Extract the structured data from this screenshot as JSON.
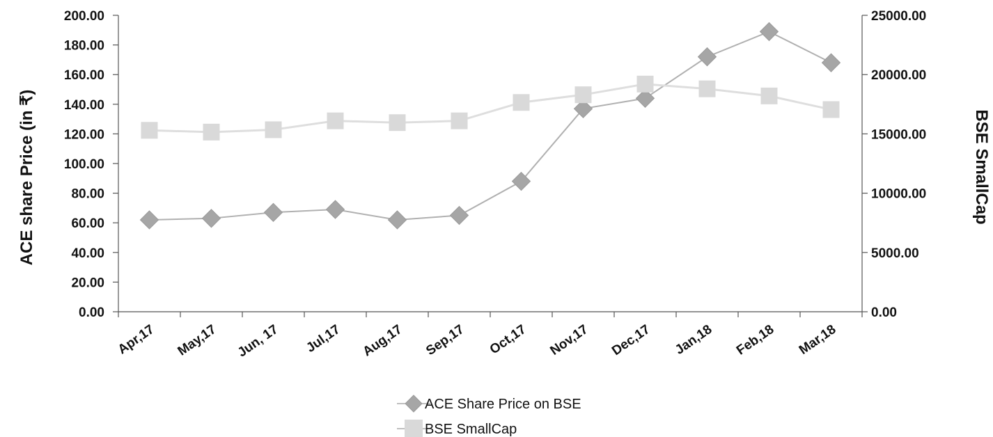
{
  "chart_data": {
    "type": "line",
    "categories": [
      "Apr,17",
      "May,17",
      "Jun, 17",
      "Jul,17",
      "Aug,17",
      "Sep,17",
      "Oct,17",
      "Nov,17",
      "Dec,17",
      "Jan,18",
      "Feb,18",
      "Mar,18"
    ],
    "series": [
      {
        "name": "ACE Share Price on BSE",
        "axis": "left",
        "marker": "diamond",
        "color": "#a6a6a6",
        "values": [
          62,
          63,
          67,
          69,
          62,
          65,
          88,
          137,
          144,
          172,
          189,
          168
        ]
      },
      {
        "name": "BSE SmallCap",
        "axis": "right",
        "marker": "square",
        "color": "#d9d9d9",
        "values": [
          15300,
          15150,
          15350,
          16100,
          15950,
          16100,
          17650,
          18300,
          19200,
          18800,
          18200,
          17050
        ]
      }
    ],
    "ylabel": "ACE share Price (in ₹)",
    "y2label": "BSE SmallCap",
    "ylim": [
      0,
      200
    ],
    "y2lim": [
      0,
      25000
    ],
    "yticks": [
      "0.00",
      "20.00",
      "40.00",
      "60.00",
      "80.00",
      "100.00",
      "120.00",
      "140.00",
      "160.00",
      "180.00",
      "200.00"
    ],
    "y2ticks": [
      "0.00",
      "5000.00",
      "10000.00",
      "15000.00",
      "20000.00",
      "25000.00"
    ],
    "legend_position": "bottom",
    "grid": false
  }
}
